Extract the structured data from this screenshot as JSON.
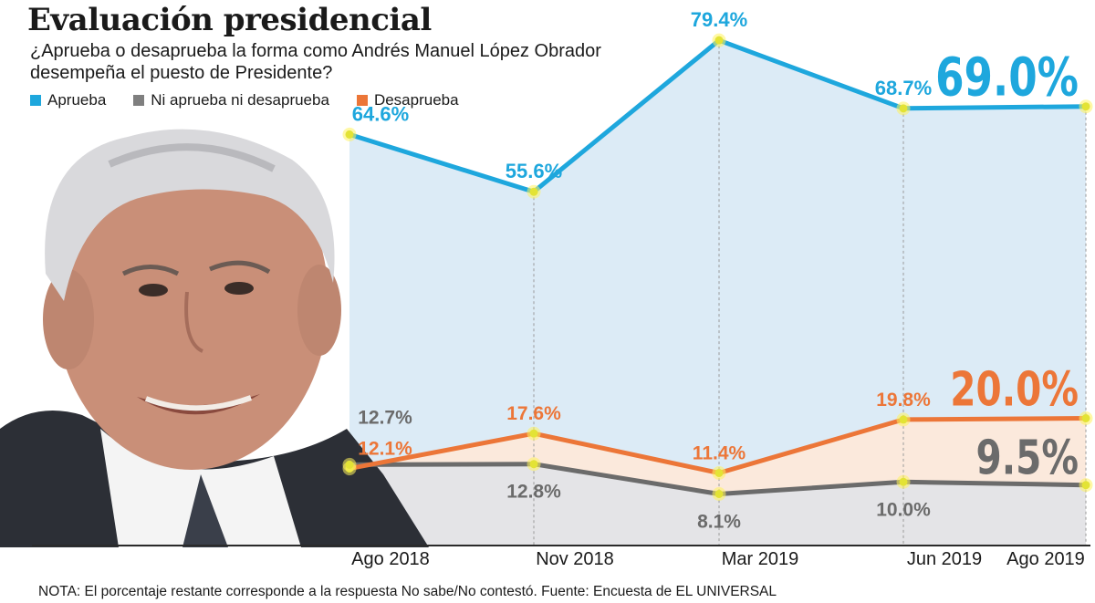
{
  "header": {
    "title": "Evaluación presidencial",
    "subtitle": "¿Aprueba o desaprueba la forma como Andrés Manuel López Obrador desempeña el puesto de Presidente?"
  },
  "legend": [
    {
      "label": "Aprueba",
      "color": "#1ea7dd"
    },
    {
      "label": "Ni aprueba ni desaprueba",
      "color": "#7f7f7f"
    },
    {
      "label": "Desaprueba",
      "color": "#ec7638"
    }
  ],
  "photo": {
    "alt": "portrait-photo"
  },
  "note": "NOTA: El porcentaje restante corresponde a la respuesta No sabe/No contestó. Fuente: Encuesta de EL UNIVERSAL",
  "chart_data": {
    "type": "line",
    "title": "Evaluación presidencial",
    "categories": [
      "Ago 2018",
      "Nov 2018",
      "Mar 2019",
      "Jun 2019",
      "Ago 2019"
    ],
    "ylim": [
      0,
      80
    ],
    "grid": "vertical-dashed",
    "series": [
      {
        "name": "Aprueba",
        "color": "#1ea7dd",
        "fill": "#dcebf6",
        "values": [
          64.6,
          55.6,
          79.4,
          68.7,
          69.0
        ],
        "labels": [
          "64.6%",
          "55.6%",
          "79.4%",
          "68.7%",
          "69.0%"
        ]
      },
      {
        "name": "Ni aprueba ni desaprueba",
        "color": "#6b6b6b",
        "fill": "#e4e4e7",
        "values": [
          12.7,
          12.8,
          8.1,
          10.0,
          9.5
        ],
        "labels": [
          "12.7%",
          "12.8%",
          "8.1%",
          "10.0%",
          "9.5%"
        ]
      },
      {
        "name": "Desaprueba",
        "color": "#ec7638",
        "fill": "#fbe9dc",
        "values": [
          12.1,
          17.6,
          11.4,
          19.8,
          20.0
        ],
        "labels": [
          "12.1%",
          "17.6%",
          "11.4%",
          "19.8%",
          "20.0%"
        ]
      }
    ]
  }
}
